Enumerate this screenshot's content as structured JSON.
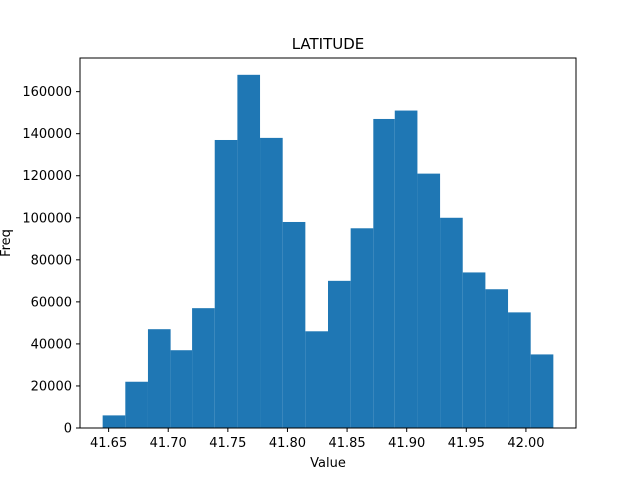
{
  "chart_data": {
    "type": "bar",
    "title": "LATITUDE",
    "xlabel": "Value",
    "ylabel": "Freq",
    "bins": [
      {
        "x0": 41.645,
        "x1": 41.664,
        "value": 6000
      },
      {
        "x0": 41.664,
        "x1": 41.683,
        "value": 22000
      },
      {
        "x0": 41.683,
        "x1": 41.702,
        "value": 47000
      },
      {
        "x0": 41.702,
        "x1": 41.72,
        "value": 37000
      },
      {
        "x0": 41.72,
        "x1": 41.739,
        "value": 57000
      },
      {
        "x0": 41.739,
        "x1": 41.758,
        "value": 137000
      },
      {
        "x0": 41.758,
        "x1": 41.777,
        "value": 168000
      },
      {
        "x0": 41.777,
        "x1": 41.796,
        "value": 138000
      },
      {
        "x0": 41.796,
        "x1": 41.815,
        "value": 98000
      },
      {
        "x0": 41.815,
        "x1": 41.834,
        "value": 46000
      },
      {
        "x0": 41.834,
        "x1": 41.853,
        "value": 70000
      },
      {
        "x0": 41.853,
        "x1": 41.872,
        "value": 95000
      },
      {
        "x0": 41.872,
        "x1": 41.89,
        "value": 147000
      },
      {
        "x0": 41.89,
        "x1": 41.909,
        "value": 151000
      },
      {
        "x0": 41.909,
        "x1": 41.928,
        "value": 121000
      },
      {
        "x0": 41.928,
        "x1": 41.947,
        "value": 100000
      },
      {
        "x0": 41.947,
        "x1": 41.966,
        "value": 74000
      },
      {
        "x0": 41.966,
        "x1": 41.985,
        "value": 66000
      },
      {
        "x0": 41.985,
        "x1": 42.004,
        "value": 55000
      },
      {
        "x0": 42.004,
        "x1": 42.023,
        "value": 35000
      }
    ],
    "xlim": [
      41.626,
      42.042
    ],
    "ylim": [
      0,
      176000
    ],
    "xticks": [
      41.65,
      41.7,
      41.75,
      41.8,
      41.85,
      41.9,
      41.95,
      42.0
    ],
    "xtick_labels": [
      "41.65",
      "41.70",
      "41.75",
      "41.80",
      "41.85",
      "41.90",
      "41.95",
      "42.00"
    ],
    "yticks": [
      0,
      20000,
      40000,
      60000,
      80000,
      100000,
      120000,
      140000,
      160000
    ],
    "ytick_labels": [
      "0",
      "20000",
      "40000",
      "60000",
      "80000",
      "100000",
      "120000",
      "140000",
      "160000"
    ],
    "grid": false,
    "bar_color": "#1f77b4"
  }
}
